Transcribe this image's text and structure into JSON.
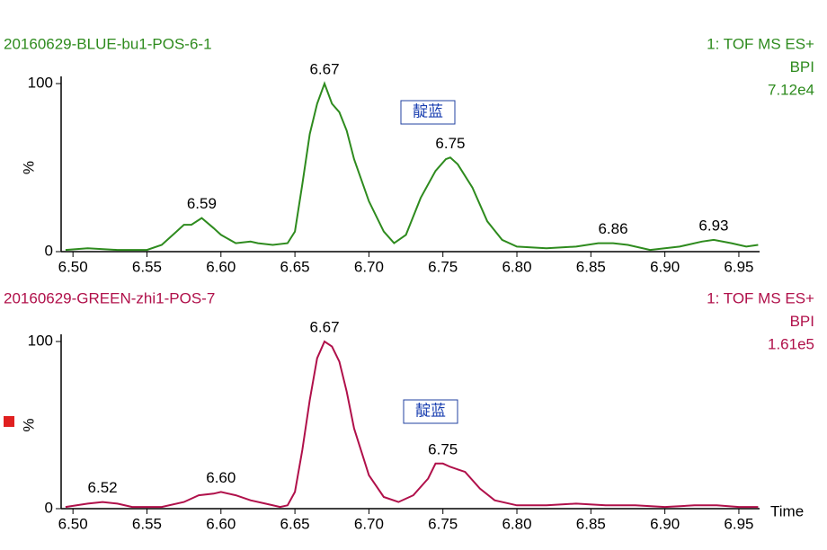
{
  "chart_data": [
    {
      "type": "line",
      "title": "20160629-BLUE-bu1-POS-6-1",
      "info": [
        "1: TOF MS ES+",
        "BPI",
        "7.12e4"
      ],
      "ylabel": "%",
      "box_label": "靛蓝",
      "x": [
        6.495,
        6.51,
        6.53,
        6.55,
        6.56,
        6.57,
        6.575,
        6.58,
        6.587,
        6.595,
        6.6,
        6.61,
        6.62,
        6.625,
        6.635,
        6.645,
        6.65,
        6.655,
        6.66,
        6.665,
        6.67,
        6.675,
        6.68,
        6.685,
        6.69,
        6.7,
        6.71,
        6.717,
        6.725,
        6.735,
        6.745,
        6.752,
        6.755,
        6.76,
        6.77,
        6.78,
        6.79,
        6.8,
        6.82,
        6.84,
        6.855,
        6.865,
        6.875,
        6.89,
        6.91,
        6.925,
        6.933,
        6.945,
        6.955,
        6.963
      ],
      "series": [
        {
          "color": "#2e8b1e",
          "values": [
            1,
            2,
            1,
            1,
            4,
            12,
            16,
            16,
            20,
            14,
            10,
            5,
            6,
            5,
            4,
            5,
            12,
            40,
            70,
            88,
            100,
            88,
            83,
            72,
            55,
            30,
            12,
            5,
            10,
            32,
            48,
            55,
            56,
            52,
            38,
            18,
            7,
            3,
            2,
            3,
            5,
            5,
            4,
            1,
            3,
            6,
            7,
            5,
            3,
            4
          ]
        }
      ],
      "annotations": [
        {
          "label": "6.59",
          "x": 6.587,
          "y": 20
        },
        {
          "label": "6.67",
          "x": 6.67,
          "y": 100
        },
        {
          "label": "6.75",
          "x": 6.755,
          "y": 56
        },
        {
          "label": "6.86",
          "x": 6.865,
          "y": 5
        },
        {
          "label": "6.93",
          "x": 6.933,
          "y": 7
        }
      ],
      "xlim": [
        6.492,
        6.964
      ],
      "ylim": [
        0,
        100
      ],
      "xticks": [
        {
          "value": 6.5,
          "label": "6.50"
        },
        6.55,
        {
          "value": 6.6,
          "label": "6.60"
        },
        6.65,
        {
          "value": 6.7,
          "label": "6.70"
        },
        6.75,
        {
          "value": 6.8,
          "label": "6.80"
        },
        6.85,
        {
          "value": 6.9,
          "label": "6.90"
        },
        6.95
      ],
      "yticks": [
        0,
        100
      ]
    },
    {
      "type": "line",
      "title": "20160629-GREEN-zhi1-POS-7",
      "info": [
        "1: TOF MS ES+",
        "BPI",
        "1.61e5"
      ],
      "ylabel": "%",
      "xlabel": "Time",
      "box_label": "靛蓝",
      "x": [
        6.495,
        6.51,
        6.52,
        6.53,
        6.54,
        6.56,
        6.575,
        6.585,
        6.595,
        6.6,
        6.61,
        6.62,
        6.63,
        6.64,
        6.645,
        6.65,
        6.655,
        6.66,
        6.665,
        6.67,
        6.675,
        6.68,
        6.685,
        6.69,
        6.7,
        6.71,
        6.72,
        6.73,
        6.74,
        6.745,
        6.75,
        6.755,
        6.765,
        6.775,
        6.785,
        6.8,
        6.82,
        6.84,
        6.86,
        6.88,
        6.9,
        6.92,
        6.935,
        6.95,
        6.963
      ],
      "series": [
        {
          "color": "#b0104a",
          "values": [
            1,
            3,
            4,
            3,
            1,
            1,
            4,
            8,
            9,
            10,
            8,
            5,
            3,
            1,
            2,
            10,
            35,
            65,
            90,
            100,
            97,
            88,
            70,
            48,
            20,
            7,
            4,
            8,
            18,
            27,
            27,
            25,
            22,
            12,
            5,
            2,
            2,
            3,
            2,
            2,
            1,
            2,
            2,
            1,
            1
          ]
        }
      ],
      "annotations": [
        {
          "label": "6.52",
          "x": 6.52,
          "y": 4
        },
        {
          "label": "6.60",
          "x": 6.6,
          "y": 10
        },
        {
          "label": "6.67",
          "x": 6.67,
          "y": 100
        },
        {
          "label": "6.75",
          "x": 6.75,
          "y": 27
        }
      ],
      "xlim": [
        6.492,
        6.964
      ],
      "ylim": [
        0,
        100
      ],
      "xticks": [
        {
          "value": 6.5,
          "label": "6.50"
        },
        6.55,
        {
          "value": 6.6,
          "label": "6.60"
        },
        6.65,
        {
          "value": 6.7,
          "label": "6.70"
        },
        6.75,
        {
          "value": 6.8,
          "label": "6.80"
        },
        6.85,
        {
          "value": 6.9,
          "label": "6.90"
        },
        6.95
      ],
      "yticks": [
        0,
        100
      ]
    }
  ]
}
